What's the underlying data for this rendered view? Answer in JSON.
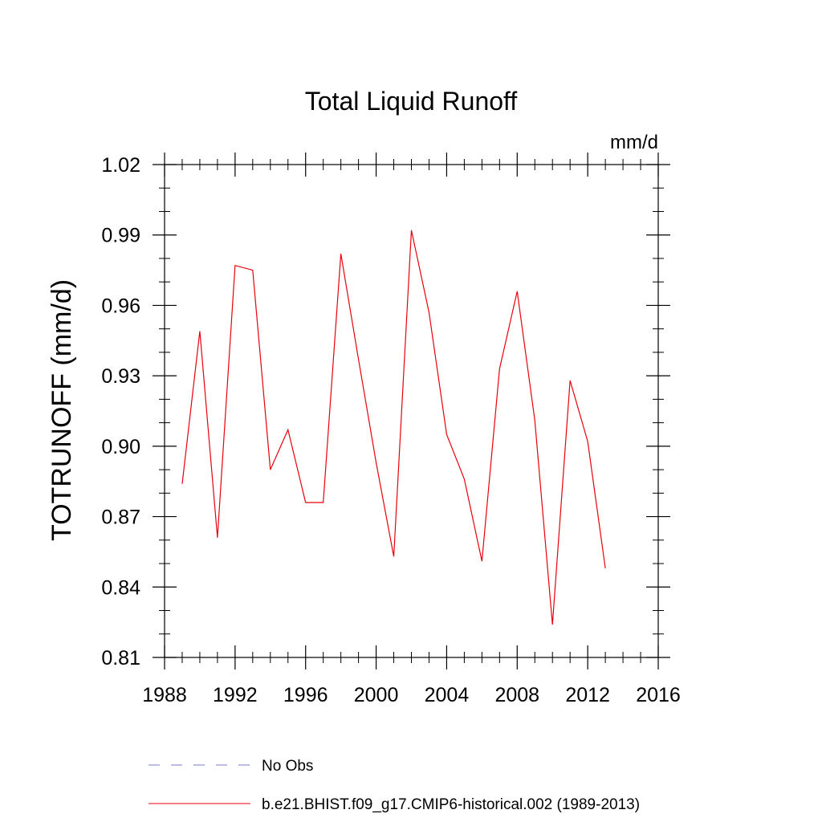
{
  "chart_data": {
    "type": "line",
    "title": "Total Liquid Runoff",
    "units_label": "mm/d",
    "ylabel": "TOTRUNOFF  (mm/d)",
    "xlabel": "",
    "xlim": [
      1988,
      2016
    ],
    "ylim": [
      0.81,
      1.02
    ],
    "x_ticks": [
      1988,
      1992,
      1996,
      2000,
      2004,
      2008,
      2012,
      2016
    ],
    "y_ticks": [
      "0.81",
      "0.84",
      "0.87",
      "0.90",
      "0.93",
      "0.96",
      "0.99",
      "1.02"
    ],
    "grid": false,
    "legend_position": "bottom",
    "series": [
      {
        "name": "No Obs",
        "color": "#7777cc",
        "style": "dashed",
        "x": [],
        "values": []
      },
      {
        "name": "b.e21.BHIST.f09_g17.CMIP6-historical.002 (1989-2013)",
        "color": "#e8000b",
        "style": "solid",
        "x": [
          1989,
          1990,
          1991,
          1992,
          1993,
          1994,
          1995,
          1996,
          1997,
          1998,
          1999,
          2000,
          2001,
          2002,
          2003,
          2004,
          2005,
          2006,
          2007,
          2008,
          2009,
          2010,
          2011,
          2012,
          2013
        ],
        "values": [
          0.884,
          0.949,
          0.861,
          0.977,
          0.975,
          0.89,
          0.907,
          0.876,
          0.876,
          0.982,
          0.937,
          0.893,
          0.853,
          0.992,
          0.957,
          0.905,
          0.886,
          0.851,
          0.933,
          0.966,
          0.911,
          0.824,
          0.928,
          0.902,
          0.848
        ]
      }
    ]
  }
}
